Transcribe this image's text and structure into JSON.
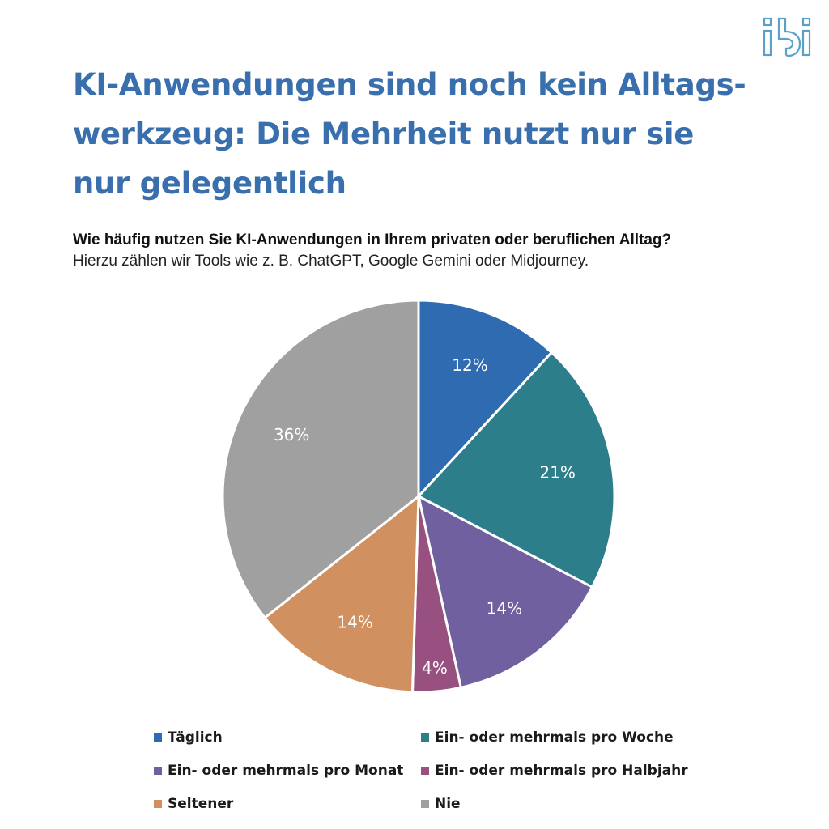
{
  "logo": {
    "text": "ibi",
    "icon": "ibi-logo-icon",
    "color": "#5aa0c8"
  },
  "title": "KI-Anwendungen sind noch kein Alltags-werkzeug: Die Mehrheit nutzt nur sie nur gelegentlich",
  "title_lines": [
    "KI-Anwendungen sind noch kein Alltags-",
    "werkzeug: Die Mehrheit nutzt nur sie",
    "nur gelegentlich"
  ],
  "question": {
    "main": "Wie häufig nutzen Sie KI-Anwendungen in Ihrem privaten oder beruflichen Alltag?",
    "sub": "Hierzu zählen wir Tools wie z. B. ChatGPT, Google Gemini oder Midjourney."
  },
  "chart_data": {
    "type": "pie",
    "title": "Wie häufig nutzen Sie KI-Anwendungen in Ihrem privaten oder beruflichen Alltag?",
    "start_angle": "12 o'clock, clockwise",
    "legend_position": "bottom",
    "slices": [
      {
        "label": "Täglich",
        "value": 12,
        "data_label": "12%",
        "color": "#2f6bb0"
      },
      {
        "label": "Ein- oder mehrmals pro Woche",
        "value": 21,
        "data_label": "21%",
        "color": "#2c7f8a"
      },
      {
        "label": "Ein- oder mehrmals pro Monat",
        "value": 14,
        "data_label": "14%",
        "color": "#7060a0"
      },
      {
        "label": "Ein- oder mehrmals pro Halbjahr",
        "value": 4,
        "data_label": "4%",
        "color": "#985080"
      },
      {
        "label": "Seltener",
        "value": 14,
        "data_label": "14%",
        "color": "#d09060"
      },
      {
        "label": "Nie",
        "value": 36,
        "data_label": "36%",
        "color": "#a0a0a0"
      }
    ]
  }
}
